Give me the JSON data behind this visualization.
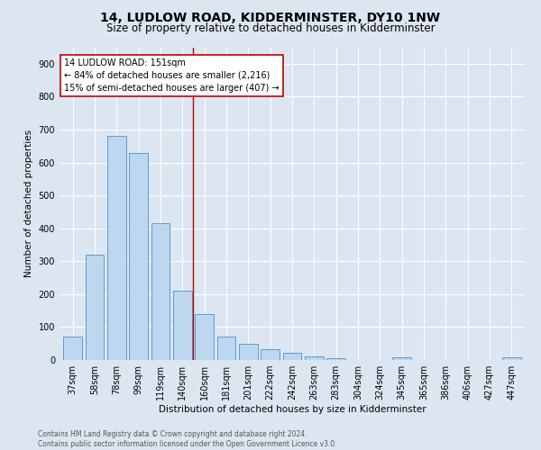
{
  "title": "14, LUDLOW ROAD, KIDDERMINSTER, DY10 1NW",
  "subtitle": "Size of property relative to detached houses in Kidderminster",
  "xlabel": "Distribution of detached houses by size in Kidderminster",
  "ylabel": "Number of detached properties",
  "categories": [
    "37sqm",
    "58sqm",
    "78sqm",
    "99sqm",
    "119sqm",
    "140sqm",
    "160sqm",
    "181sqm",
    "201sqm",
    "222sqm",
    "242sqm",
    "263sqm",
    "283sqm",
    "304sqm",
    "324sqm",
    "345sqm",
    "365sqm",
    "386sqm",
    "406sqm",
    "427sqm",
    "447sqm"
  ],
  "values": [
    70,
    320,
    680,
    630,
    415,
    210,
    140,
    70,
    48,
    33,
    22,
    12,
    5,
    0,
    0,
    8,
    0,
    0,
    0,
    0,
    8
  ],
  "bar_color": "#bdd7ee",
  "bar_edge_color": "#5b9bd5",
  "background_color": "#dce6f1",
  "plot_bg_color": "#dce6f1",
  "annotation_text": "14 LUDLOW ROAD: 151sqm\n← 84% of detached houses are smaller (2,216)\n15% of semi-detached houses are larger (407) →",
  "vline_x_index": 5.5,
  "vline_color": "#c00000",
  "annotation_box_facecolor": "#ffffff",
  "annotation_box_edgecolor": "#c00000",
  "footer_text": "Contains HM Land Registry data © Crown copyright and database right 2024.\nContains public sector information licensed under the Open Government Licence v3.0.",
  "ylim": [
    0,
    950
  ],
  "yticks": [
    0,
    100,
    200,
    300,
    400,
    500,
    600,
    700,
    800,
    900
  ],
  "title_fontsize": 10,
  "subtitle_fontsize": 8.5,
  "axis_label_fontsize": 7.5,
  "tick_fontsize": 7,
  "annotation_fontsize": 7,
  "footer_fontsize": 5.5
}
